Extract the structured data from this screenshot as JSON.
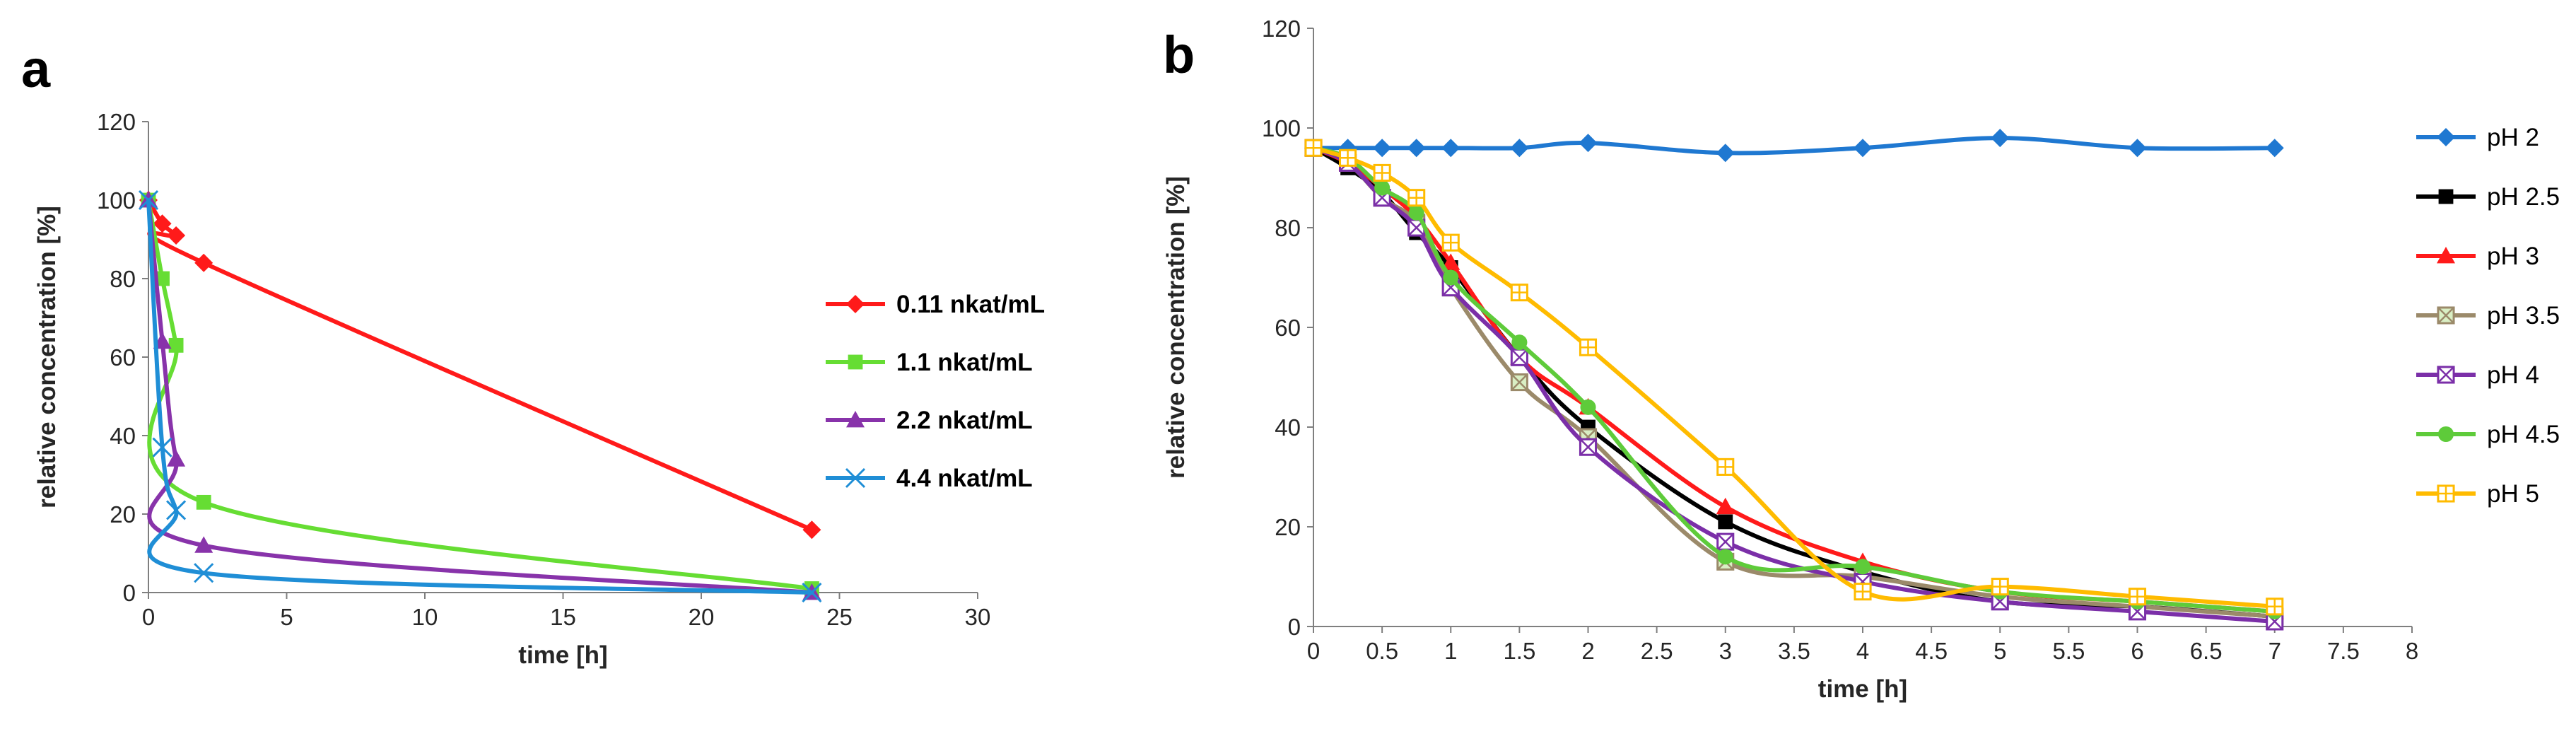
{
  "chart_data": [
    {
      "panel": "a",
      "type": "line",
      "xlabel": "time [h]",
      "ylabel": "relative concentration [%]",
      "xlim": [
        0,
        30
      ],
      "ylim": [
        0,
        120
      ],
      "xticks": [
        "0",
        "5",
        "10",
        "15",
        "20",
        "25",
        "30"
      ],
      "yticks": [
        "0",
        "20",
        "40",
        "60",
        "80",
        "100",
        "120"
      ],
      "grid": false,
      "legend": "right",
      "series": [
        {
          "name": "0.11 nkat/mL",
          "color": "#ff1a1a",
          "marker": "diamond",
          "x": [
            0,
            0.5,
            1,
            2,
            24
          ],
          "y": [
            100,
            94,
            91,
            84,
            16
          ]
        },
        {
          "name": "1.1 nkat/mL",
          "color": "#66dd33",
          "marker": "square",
          "x": [
            0,
            0.5,
            1,
            2,
            24
          ],
          "y": [
            100,
            80,
            63,
            23,
            1
          ]
        },
        {
          "name": "2.2 nkat/mL",
          "color": "#8833aa",
          "marker": "triangle",
          "x": [
            0,
            0.5,
            1,
            2,
            24
          ],
          "y": [
            100,
            64,
            34,
            12,
            0
          ]
        },
        {
          "name": "4.4 nkat/mL",
          "color": "#1f8ed6",
          "marker": "x",
          "x": [
            0,
            0.5,
            1,
            2,
            24
          ],
          "y": [
            100,
            37,
            21,
            5,
            0
          ]
        }
      ]
    },
    {
      "panel": "b",
      "type": "line",
      "xlabel": "time [h]",
      "ylabel": "relative concentration [%]",
      "xlim": [
        0,
        8
      ],
      "ylim": [
        0,
        120
      ],
      "xticks": [
        "0",
        "0.5",
        "1",
        "1.5",
        "2",
        "2.5",
        "3",
        "3.5",
        "4",
        "4.5",
        "5",
        "5.5",
        "6",
        "6.5",
        "7",
        "7.5",
        "8"
      ],
      "yticks": [
        "0",
        "20",
        "40",
        "60",
        "80",
        "100",
        "120"
      ],
      "grid": false,
      "legend": "right",
      "series": [
        {
          "name": "pH 2",
          "color": "#1f78d1",
          "marker": "diamond",
          "x": [
            0,
            0.25,
            0.5,
            0.75,
            1,
            1.5,
            2,
            3,
            4,
            5,
            6,
            7
          ],
          "y": [
            96,
            96,
            96,
            96,
            96,
            96,
            97,
            95,
            96,
            98,
            96,
            96
          ]
        },
        {
          "name": "pH 2.5",
          "color": "#000000",
          "marker": "square",
          "x": [
            0,
            0.25,
            0.5,
            0.75,
            1,
            1.5,
            2,
            3,
            4,
            5,
            6,
            7
          ],
          "y": [
            96,
            92,
            87,
            79,
            72,
            54,
            40,
            21,
            11,
            5,
            4,
            2
          ]
        },
        {
          "name": "pH 3",
          "color": "#ff1a1a",
          "marker": "triangle",
          "x": [
            0,
            0.25,
            0.5,
            0.75,
            1,
            1.5,
            2,
            3,
            4,
            5,
            6,
            7
          ],
          "y": [
            96,
            93,
            88,
            82,
            73,
            54,
            44,
            24,
            13,
            7,
            5,
            3
          ]
        },
        {
          "name": "pH 3.5",
          "color": "#9b8a6a",
          "marker": "xsquare-filled",
          "x": [
            0,
            0.25,
            0.5,
            0.75,
            1,
            1.5,
            2,
            3,
            4,
            5,
            6,
            7
          ],
          "y": [
            96,
            93,
            86,
            81,
            68,
            49,
            38,
            13,
            10,
            6,
            4,
            2
          ]
        },
        {
          "name": "pH 4",
          "color": "#7b2fa8",
          "marker": "xsquare",
          "x": [
            0,
            0.25,
            0.5,
            0.75,
            1,
            1.5,
            2,
            3,
            4,
            5,
            6,
            7
          ],
          "y": [
            96,
            93,
            86,
            80,
            68,
            54,
            36,
            17,
            9,
            5,
            3,
            1
          ]
        },
        {
          "name": "pH 4.5",
          "color": "#5ecb3a",
          "marker": "circle",
          "x": [
            0,
            0.25,
            0.5,
            0.75,
            1,
            1.5,
            2,
            3,
            4,
            5,
            6,
            7
          ],
          "y": [
            96,
            94,
            88,
            83,
            70,
            57,
            44,
            14,
            12,
            7,
            5,
            3
          ]
        },
        {
          "name": "pH 5",
          "color": "#ffbb00",
          "marker": "plussquare",
          "x": [
            0,
            0.25,
            0.5,
            0.75,
            1,
            1.5,
            2,
            3,
            4,
            5,
            6,
            7
          ],
          "y": [
            96,
            94,
            91,
            86,
            77,
            67,
            56,
            32,
            7,
            8,
            6,
            4
          ]
        }
      ]
    }
  ]
}
